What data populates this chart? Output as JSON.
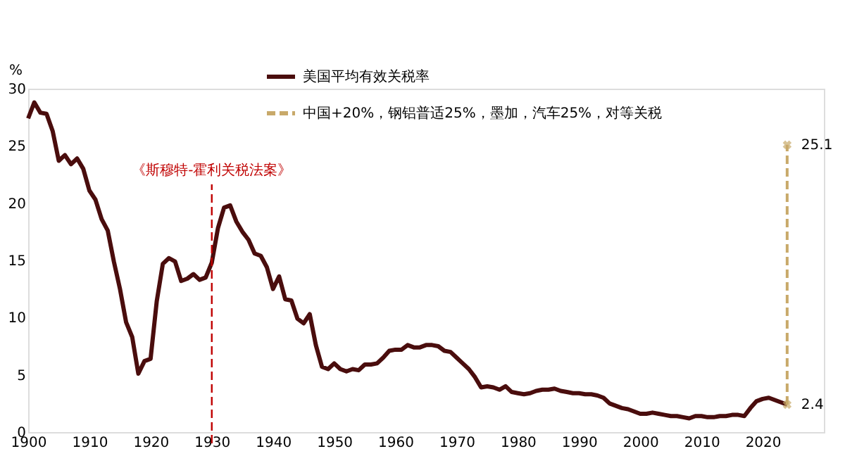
{
  "chart_data": {
    "type": "line",
    "ylabel": "%",
    "xlim": [
      1900,
      2030
    ],
    "ylim": [
      0,
      30
    ],
    "xticks": [
      1900,
      1910,
      1920,
      1930,
      1940,
      1950,
      1960,
      1970,
      1980,
      1990,
      2000,
      2010,
      2020
    ],
    "yticks": [
      0,
      5,
      10,
      15,
      20,
      25,
      30
    ],
    "legend": "top",
    "grid": false,
    "series": [
      {
        "name": "美国平均有效关税率",
        "color": "#4a0d0d",
        "line_style": "solid",
        "x": [
          1900,
          1901,
          1902,
          1903,
          1904,
          1905,
          1906,
          1907,
          1908,
          1909,
          1910,
          1911,
          1912,
          1913,
          1914,
          1915,
          1916,
          1917,
          1918,
          1919,
          1920,
          1921,
          1922,
          1923,
          1924,
          1925,
          1926,
          1927,
          1928,
          1929,
          1930,
          1931,
          1932,
          1933,
          1934,
          1935,
          1936,
          1937,
          1938,
          1939,
          1940,
          1941,
          1942,
          1943,
          1944,
          1945,
          1946,
          1947,
          1948,
          1949,
          1950,
          1951,
          1952,
          1953,
          1954,
          1955,
          1956,
          1957,
          1958,
          1959,
          1960,
          1961,
          1962,
          1963,
          1964,
          1965,
          1966,
          1967,
          1968,
          1969,
          1970,
          1971,
          1972,
          1973,
          1974,
          1975,
          1976,
          1977,
          1978,
          1979,
          1980,
          1981,
          1982,
          1983,
          1984,
          1985,
          1986,
          1987,
          1988,
          1989,
          1990,
          1991,
          1992,
          1993,
          1994,
          1995,
          1996,
          1997,
          1998,
          1999,
          2000,
          2001,
          2002,
          2003,
          2004,
          2005,
          2006,
          2007,
          2008,
          2009,
          2010,
          2011,
          2012,
          2013,
          2014,
          2015,
          2016,
          2017,
          2018,
          2019,
          2020,
          2021,
          2022,
          2023,
          2024
        ],
        "values": [
          27.4,
          28.8,
          27.9,
          27.8,
          26.3,
          23.7,
          24.2,
          23.4,
          23.9,
          23.0,
          21.1,
          20.3,
          18.6,
          17.6,
          14.9,
          12.5,
          9.6,
          8.3,
          5.1,
          6.2,
          6.4,
          11.4,
          14.7,
          15.2,
          14.9,
          13.2,
          13.4,
          13.8,
          13.3,
          13.5,
          14.8,
          17.8,
          19.6,
          19.8,
          18.4,
          17.5,
          16.8,
          15.6,
          15.4,
          14.4,
          12.5,
          13.6,
          11.6,
          11.5,
          9.9,
          9.5,
          10.3,
          7.6,
          5.7,
          5.5,
          6.0,
          5.5,
          5.3,
          5.5,
          5.4,
          5.9,
          5.9,
          6.0,
          6.5,
          7.1,
          7.2,
          7.2,
          7.6,
          7.4,
          7.4,
          7.6,
          7.6,
          7.5,
          7.1,
          7.0,
          6.5,
          6.0,
          5.5,
          4.8,
          3.9,
          4.0,
          3.9,
          3.7,
          4.0,
          3.5,
          3.4,
          3.3,
          3.4,
          3.6,
          3.7,
          3.7,
          3.8,
          3.6,
          3.5,
          3.4,
          3.4,
          3.3,
          3.3,
          3.2,
          3.0,
          2.5,
          2.3,
          2.1,
          2.0,
          1.8,
          1.6,
          1.6,
          1.7,
          1.6,
          1.5,
          1.4,
          1.4,
          1.3,
          1.2,
          1.4,
          1.4,
          1.3,
          1.3,
          1.4,
          1.4,
          1.5,
          1.5,
          1.4,
          2.1,
          2.7,
          2.9,
          3.0,
          2.8,
          2.6,
          2.4
        ]
      },
      {
        "name": "中国+20%，钢铝普适25%，墨加，汽车25%，对等关税",
        "color": "#c8a96a",
        "line_style": "dashed",
        "marker": "cross",
        "x": [
          2024,
          2024
        ],
        "values": [
          2.4,
          25.1
        ],
        "value_labels": [
          "2.4",
          "25.1"
        ]
      }
    ],
    "ref_lines": [
      {
        "axis": "x",
        "value": 1930,
        "label": "《斯穆特-霍利关税法案》",
        "color": "#c00000",
        "line_style": "dashed"
      }
    ]
  }
}
